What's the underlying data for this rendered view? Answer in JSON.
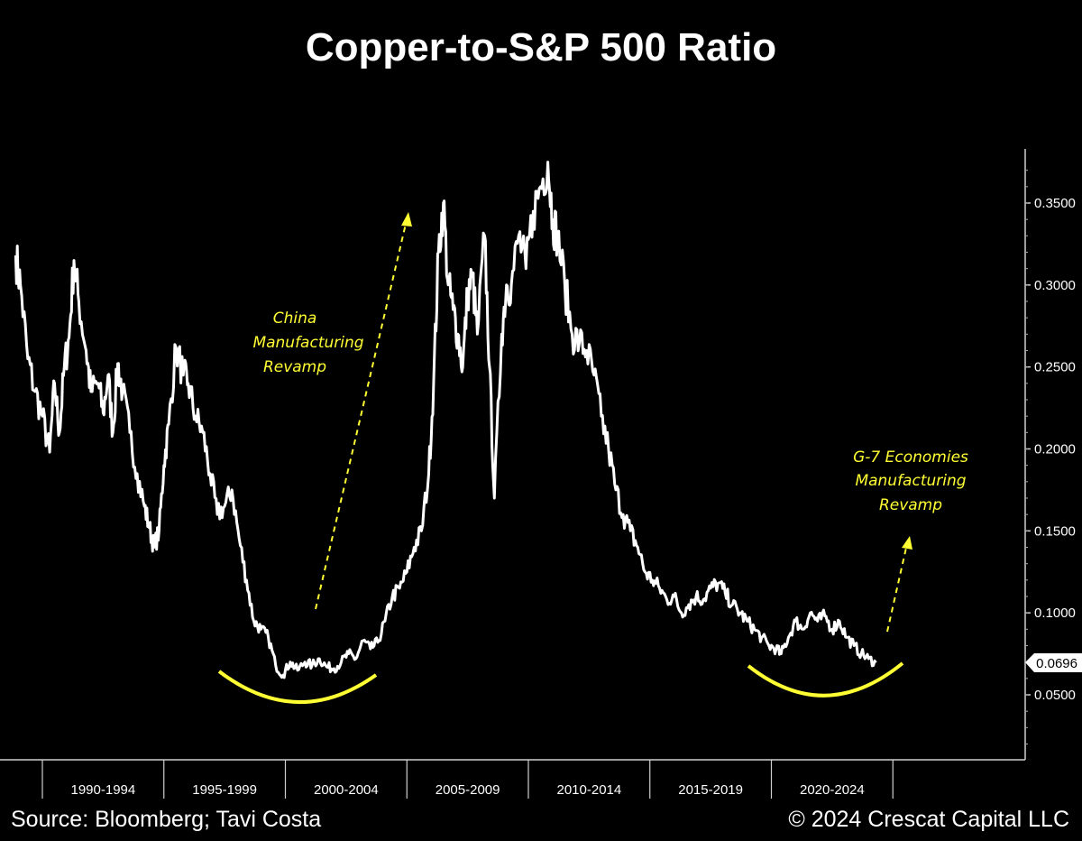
{
  "chart_data": {
    "type": "line",
    "title": "Copper-to-S&P 500 Ratio",
    "xlabel": "",
    "ylabel": "",
    "xlim": [
      1989.0,
      2031.0
    ],
    "ylim": [
      0.0,
      0.38
    ],
    "y_ticks": [
      "0.0500",
      "0.1000",
      "0.1500",
      "0.2000",
      "0.2500",
      "0.3000",
      "0.3500"
    ],
    "y_tick_values": [
      0.05,
      0.1,
      0.15,
      0.2,
      0.25,
      0.3,
      0.35
    ],
    "x_tick_labels": [
      "1990-1994",
      "1995-1999",
      "2000-2004",
      "2005-2009",
      "2010-2014",
      "2015-2019",
      "2020-2024"
    ],
    "x_tick_centers": [
      1992.5,
      1997.5,
      2002.5,
      2007.5,
      2012.5,
      2017.5,
      2022.5
    ],
    "x_dividers": [
      1990,
      1995,
      2000,
      2005,
      2010,
      2015,
      2020,
      2025
    ],
    "last_value_label": "0.0696",
    "series": [
      {
        "name": "Copper-to-S&P 500 Ratio",
        "color": "#ffffff",
        "x": [
          1988.9,
          1989.1,
          1989.4,
          1989.7,
          1990.0,
          1990.3,
          1990.5,
          1990.7,
          1990.9,
          1991.1,
          1991.3,
          1991.5,
          1991.8,
          1992.0,
          1992.3,
          1992.5,
          1992.7,
          1992.9,
          1993.1,
          1993.3,
          1993.6,
          1993.9,
          1994.2,
          1994.4,
          1994.6,
          1994.8,
          1995.0,
          1995.2,
          1995.5,
          1995.8,
          1996.0,
          1996.3,
          1996.6,
          1996.9,
          1997.2,
          1997.5,
          1997.8,
          1998.1,
          1998.4,
          1998.7,
          1999.0,
          1999.3,
          1999.6,
          1999.9,
          2000.2,
          2000.5,
          2000.8,
          2001.1,
          2001.4,
          2001.7,
          2002.0,
          2002.3,
          2002.6,
          2002.9,
          2003.2,
          2003.5,
          2003.8,
          2004.1,
          2004.4,
          2004.7,
          2005.0,
          2005.3,
          2005.6,
          2005.9,
          2006.1,
          2006.3,
          2006.5,
          2006.7,
          2006.9,
          2007.1,
          2007.3,
          2007.5,
          2007.7,
          2007.9,
          2008.2,
          2008.4,
          2008.6,
          2008.9,
          2009.1,
          2009.3,
          2009.6,
          2009.9,
          2010.2,
          2010.5,
          2010.8,
          2011.0,
          2011.2,
          2011.5,
          2011.8,
          2012.1,
          2012.4,
          2012.7,
          2013.0,
          2013.3,
          2013.6,
          2013.9,
          2014.2,
          2014.5,
          2014.8,
          2015.1,
          2015.4,
          2015.7,
          2016.0,
          2016.3,
          2016.6,
          2016.9,
          2017.2,
          2017.5,
          2017.8,
          2018.1,
          2018.4,
          2018.7,
          2019.0,
          2019.3,
          2019.6,
          2019.9,
          2020.2,
          2020.4,
          2020.7,
          2021.0,
          2021.3,
          2021.6,
          2021.9,
          2022.2,
          2022.5,
          2022.8,
          2023.1,
          2023.4,
          2023.7,
          2024.0,
          2024.3
        ],
        "values": [
          0.318,
          0.3,
          0.255,
          0.235,
          0.22,
          0.198,
          0.24,
          0.21,
          0.25,
          0.268,
          0.315,
          0.29,
          0.26,
          0.235,
          0.24,
          0.222,
          0.245,
          0.21,
          0.252,
          0.235,
          0.21,
          0.185,
          0.165,
          0.152,
          0.14,
          0.15,
          0.19,
          0.215,
          0.262,
          0.245,
          0.24,
          0.22,
          0.21,
          0.185,
          0.16,
          0.165,
          0.175,
          0.145,
          0.12,
          0.095,
          0.09,
          0.085,
          0.068,
          0.062,
          0.07,
          0.065,
          0.07,
          0.068,
          0.072,
          0.067,
          0.066,
          0.07,
          0.075,
          0.072,
          0.083,
          0.078,
          0.082,
          0.095,
          0.11,
          0.115,
          0.125,
          0.14,
          0.15,
          0.185,
          0.24,
          0.32,
          0.35,
          0.3,
          0.285,
          0.27,
          0.25,
          0.295,
          0.305,
          0.27,
          0.33,
          0.25,
          0.17,
          0.27,
          0.3,
          0.3,
          0.33,
          0.31,
          0.345,
          0.36,
          0.375,
          0.34,
          0.33,
          0.3,
          0.27,
          0.265,
          0.26,
          0.245,
          0.22,
          0.2,
          0.175,
          0.16,
          0.15,
          0.14,
          0.125,
          0.12,
          0.115,
          0.108,
          0.11,
          0.1,
          0.105,
          0.11,
          0.108,
          0.115,
          0.118,
          0.112,
          0.105,
          0.1,
          0.095,
          0.09,
          0.085,
          0.08,
          0.078,
          0.075,
          0.085,
          0.095,
          0.09,
          0.1,
          0.095,
          0.098,
          0.09,
          0.095,
          0.085,
          0.08,
          0.075,
          0.072,
          0.0696
        ]
      }
    ],
    "annotations": [
      {
        "lines": [
          "China",
          "Manufacturing",
          "Revamp"
        ],
        "color": "#ffff33"
      },
      {
        "lines": [
          "G-7 Economies",
          "Manufacturing",
          "Revamp"
        ],
        "color": "#ffff33"
      }
    ]
  },
  "footer": {
    "source": "Source: Bloomberg; Tavi Costa",
    "copyright": "© 2024 Crescat Capital LLC"
  }
}
